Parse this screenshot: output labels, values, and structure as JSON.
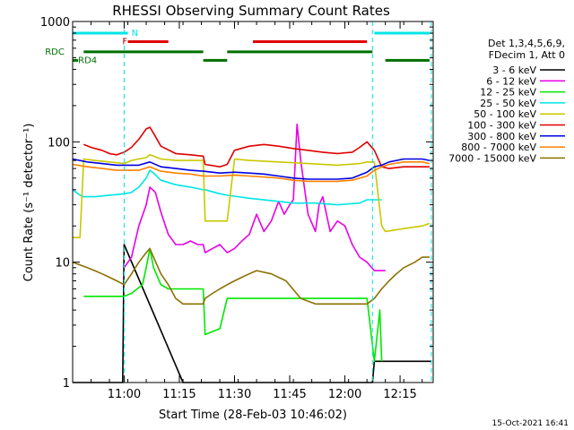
{
  "chart_data": {
    "type": "line",
    "title": "RHESSI Observing Summary Count Rates",
    "xlabel": "Start Time (28-Feb-03 10:46:02)",
    "ylabel": "Count Rate (s⁻¹ detector⁻¹)",
    "x_unit": "minutes after 10:46:02",
    "xlim": [
      0,
      98
    ],
    "ylim": [
      1,
      1000
    ],
    "y_scale": "log",
    "x_ticks": [
      {
        "x": 14,
        "label": "11:00"
      },
      {
        "x": 29,
        "label": "11:15"
      },
      {
        "x": 44,
        "label": "11:30"
      },
      {
        "x": 59,
        "label": "11:45"
      },
      {
        "x": 74,
        "label": "12:00"
      },
      {
        "x": 89,
        "label": "12:15"
      }
    ],
    "y_ticks": [
      {
        "y": 1,
        "label": "1"
      },
      {
        "y": 10,
        "label": "10"
      },
      {
        "y": 100,
        "label": "100"
      },
      {
        "y": 1000,
        "label": "1000"
      }
    ],
    "grid": false,
    "legend_position": "right",
    "legend_header": [
      "Det 1,3,4,5,6,9,",
      "FDecim 1, Att 0"
    ],
    "timestamp": "15-Oct-2021 16:41",
    "vertical_markers": [
      {
        "x": 14,
        "color": "#00e5e5"
      },
      {
        "x": 81.5,
        "color": "#00e5e5"
      },
      {
        "x": 97.5,
        "color": "#00e5e5"
      }
    ],
    "flag_bars": [
      {
        "label": "N",
        "color": "#00e5e5",
        "y": 800,
        "label_at": 16,
        "spans": [
          [
            0,
            15
          ],
          [
            82,
            97
          ]
        ]
      },
      {
        "label": "F",
        "color": "#e00000",
        "y": 680,
        "label_at": 13.5,
        "spans": [
          [
            15,
            26
          ],
          [
            49,
            80
          ]
        ]
      },
      {
        "label": "RDC",
        "color": "#007000",
        "y": 560,
        "label_at": -7.5,
        "spans": [
          [
            3,
            35.5
          ],
          [
            42,
            81.5
          ]
        ]
      },
      {
        "label": "RD4",
        "color": "#007000",
        "y": 475,
        "label_at": 1.5,
        "spans": [
          [
            0,
            1.5
          ],
          [
            35.5,
            42
          ],
          [
            85,
            97
          ]
        ]
      }
    ],
    "series": [
      {
        "name": "3 - 6 keV",
        "color": "#000000",
        "x": [
          0,
          2,
          2.5,
          10,
          13.6,
          14,
          30,
          32,
          34,
          37,
          40,
          43,
          46,
          49,
          52,
          55,
          58,
          61,
          64,
          68,
          71,
          74,
          77,
          79.5,
          80.5,
          81.5,
          82,
          97.5
        ],
        "y": [
          0,
          0,
          1,
          1,
          1,
          14,
          1,
          1,
          1,
          1,
          1,
          1,
          1,
          1,
          1,
          1,
          1,
          1,
          1,
          1,
          1,
          1,
          1,
          1,
          1,
          1,
          1.5,
          1.5
        ]
      },
      {
        "name": "6 - 12 keV",
        "color": "#e800e8",
        "x": [
          14,
          16,
          18,
          20,
          21,
          22.5,
          24,
          26,
          28,
          30,
          32,
          34,
          35.5,
          36,
          38,
          40,
          42,
          44,
          46,
          48,
          50,
          52,
          54,
          56,
          57.5,
          59,
          60,
          61,
          62,
          64,
          66,
          67,
          68,
          70,
          72,
          74,
          76,
          78,
          80,
          82,
          84,
          85
        ],
        "y": [
          9,
          11,
          20,
          30,
          42,
          38,
          26,
          17,
          14,
          14,
          15,
          14,
          14,
          12,
          13,
          14,
          12,
          13,
          15,
          17,
          25,
          18,
          22,
          32,
          25,
          30,
          33,
          140,
          70,
          25,
          18,
          30,
          35,
          18,
          22,
          20,
          14,
          11,
          10,
          8.5,
          8.5,
          8.5
        ]
      },
      {
        "name": "12 - 25 keV",
        "color": "#00e800",
        "x": [
          3,
          14,
          16,
          19,
          20,
          21,
          22,
          24,
          26,
          28,
          33,
          34,
          35.5,
          36,
          40,
          42,
          48,
          56,
          64,
          72,
          80,
          82,
          83.5,
          84
        ],
        "y": [
          5.2,
          5.2,
          5.5,
          6.5,
          9,
          13,
          9,
          6.5,
          6,
          6,
          6,
          6,
          6,
          2.5,
          2.8,
          5,
          5,
          5,
          5,
          5,
          5,
          1.5,
          4,
          1.5
        ]
      },
      {
        "name": "25 - 50 keV",
        "color": "#00e5e5",
        "x": [
          0,
          2,
          3,
          6,
          10,
          14,
          16,
          18,
          20,
          21,
          22,
          24,
          28,
          32,
          35.5,
          36,
          40,
          42,
          48,
          56,
          60,
          66,
          72,
          78,
          80,
          82,
          83.5,
          84
        ],
        "y": [
          40,
          36,
          35,
          35,
          36,
          37,
          38,
          42,
          50,
          58,
          55,
          48,
          44,
          42,
          40,
          40,
          37,
          36,
          34,
          32,
          31,
          31,
          30,
          31,
          33,
          33,
          33,
          33
        ]
      },
      {
        "name": "50 - 100 keV",
        "color": "#c8c800",
        "x": [
          0,
          2,
          3,
          6,
          10,
          14,
          16,
          20,
          21,
          22,
          24,
          28,
          32,
          34,
          35.5,
          36,
          40,
          42,
          44,
          48,
          56,
          64,
          72,
          78,
          80,
          82,
          84,
          85,
          90,
          95,
          97
        ],
        "y": [
          16,
          16,
          72,
          70,
          68,
          66,
          70,
          74,
          78,
          76,
          72,
          70,
          70,
          70,
          70,
          22,
          22,
          22,
          72,
          70,
          68,
          66,
          64,
          66,
          68,
          68,
          20,
          18,
          19,
          20,
          21
        ]
      },
      {
        "name": "100 - 300 keV",
        "color": "#e00000",
        "x": [
          3,
          5,
          8,
          10,
          12,
          14,
          16,
          18,
          20,
          21,
          22,
          24,
          28,
          32,
          35.5,
          36,
          40,
          42,
          44,
          48,
          52,
          56,
          60,
          64,
          68,
          72,
          76,
          78,
          80,
          82,
          84,
          86,
          90,
          95,
          97
        ],
        "y": [
          95,
          90,
          85,
          80,
          78,
          82,
          90,
          105,
          128,
          132,
          118,
          92,
          80,
          78,
          76,
          65,
          62,
          65,
          85,
          92,
          95,
          92,
          88,
          85,
          82,
          80,
          82,
          90,
          100,
          85,
          62,
          60,
          62,
          62,
          62
        ]
      },
      {
        "name": "300 - 800 keV",
        "color": "#0000e0",
        "x": [
          0,
          4,
          8,
          12,
          14,
          18,
          21,
          24,
          28,
          32,
          35.5,
          40,
          44,
          48,
          52,
          56,
          60,
          64,
          68,
          72,
          76,
          80,
          82,
          84,
          86,
          90,
          95,
          97
        ],
        "y": [
          72,
          68,
          66,
          64,
          64,
          64,
          68,
          62,
          60,
          58,
          57,
          55,
          56,
          55,
          54,
          52,
          50,
          49,
          49,
          49,
          50,
          56,
          62,
          64,
          68,
          72,
          72,
          70
        ]
      },
      {
        "name": "800 - 7000 keV",
        "color": "#ff8000",
        "x": [
          0,
          4,
          8,
          12,
          14,
          18,
          21,
          24,
          28,
          32,
          35.5,
          40,
          44,
          48,
          52,
          56,
          60,
          64,
          68,
          72,
          76,
          80,
          82,
          84,
          86,
          90,
          95,
          97
        ],
        "y": [
          65,
          62,
          60,
          58,
          58,
          58,
          62,
          57,
          55,
          54,
          52,
          52,
          53,
          52,
          51,
          50,
          48,
          47,
          47,
          47,
          48,
          52,
          58,
          62,
          65,
          68,
          68,
          66
        ]
      },
      {
        "name": "7000 - 15000 keV",
        "color": "#8b7000",
        "x": [
          0,
          2,
          4,
          6,
          8,
          10,
          12,
          14,
          16,
          18,
          20,
          21,
          22,
          24,
          26,
          28,
          30,
          32,
          35.5,
          36,
          38,
          40,
          42,
          44,
          46,
          48,
          50,
          54,
          58,
          62,
          66,
          70,
          74,
          78,
          80,
          82,
          84,
          86,
          88,
          90,
          93,
          95,
          97
        ],
        "y": [
          10,
          9.5,
          9,
          8.5,
          8,
          7.5,
          7,
          6.5,
          8,
          10,
          12,
          13,
          11,
          8,
          6.5,
          5,
          4.5,
          4.5,
          4.5,
          5,
          5.5,
          6,
          6.5,
          7,
          7.5,
          8,
          8.5,
          8,
          7,
          5,
          4.5,
          4.5,
          4.5,
          4.5,
          4.5,
          5,
          6,
          7,
          8,
          9,
          10,
          11,
          11
        ]
      }
    ]
  }
}
